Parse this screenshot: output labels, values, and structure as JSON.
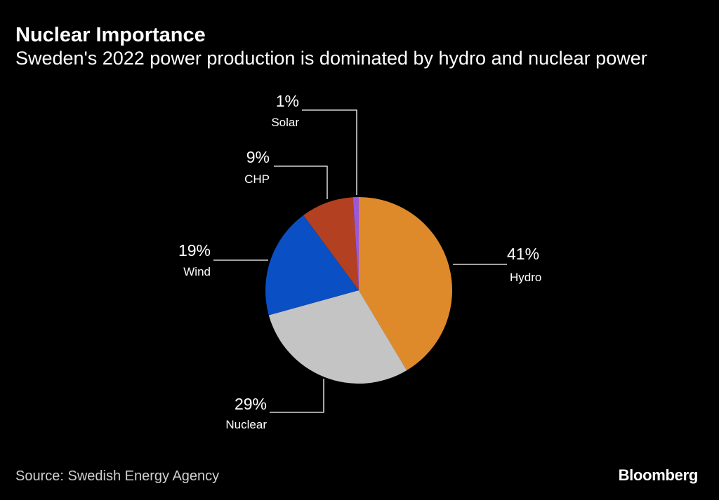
{
  "header": {
    "title": "Nuclear Importance",
    "subtitle": "Sweden's 2022 power production is dominated by hydro and nuclear power"
  },
  "footer": {
    "source": "Source: Swedish Energy Agency",
    "brand": "Bloomberg"
  },
  "chart_data": {
    "type": "pie",
    "unit": "%",
    "slices": [
      {
        "label": "Hydro",
        "value": 41,
        "display": "41%",
        "color": "#de8a2a"
      },
      {
        "label": "Nuclear",
        "value": 29,
        "display": "29%",
        "color": "#c4c4c4"
      },
      {
        "label": "Wind",
        "value": 19,
        "display": "19%",
        "color": "#0a4fc4"
      },
      {
        "label": "CHP",
        "value": 9,
        "display": "9%",
        "color": "#b34020"
      },
      {
        "label": "Solar",
        "value": 1,
        "display": "1%",
        "color": "#9b59d6"
      }
    ]
  }
}
